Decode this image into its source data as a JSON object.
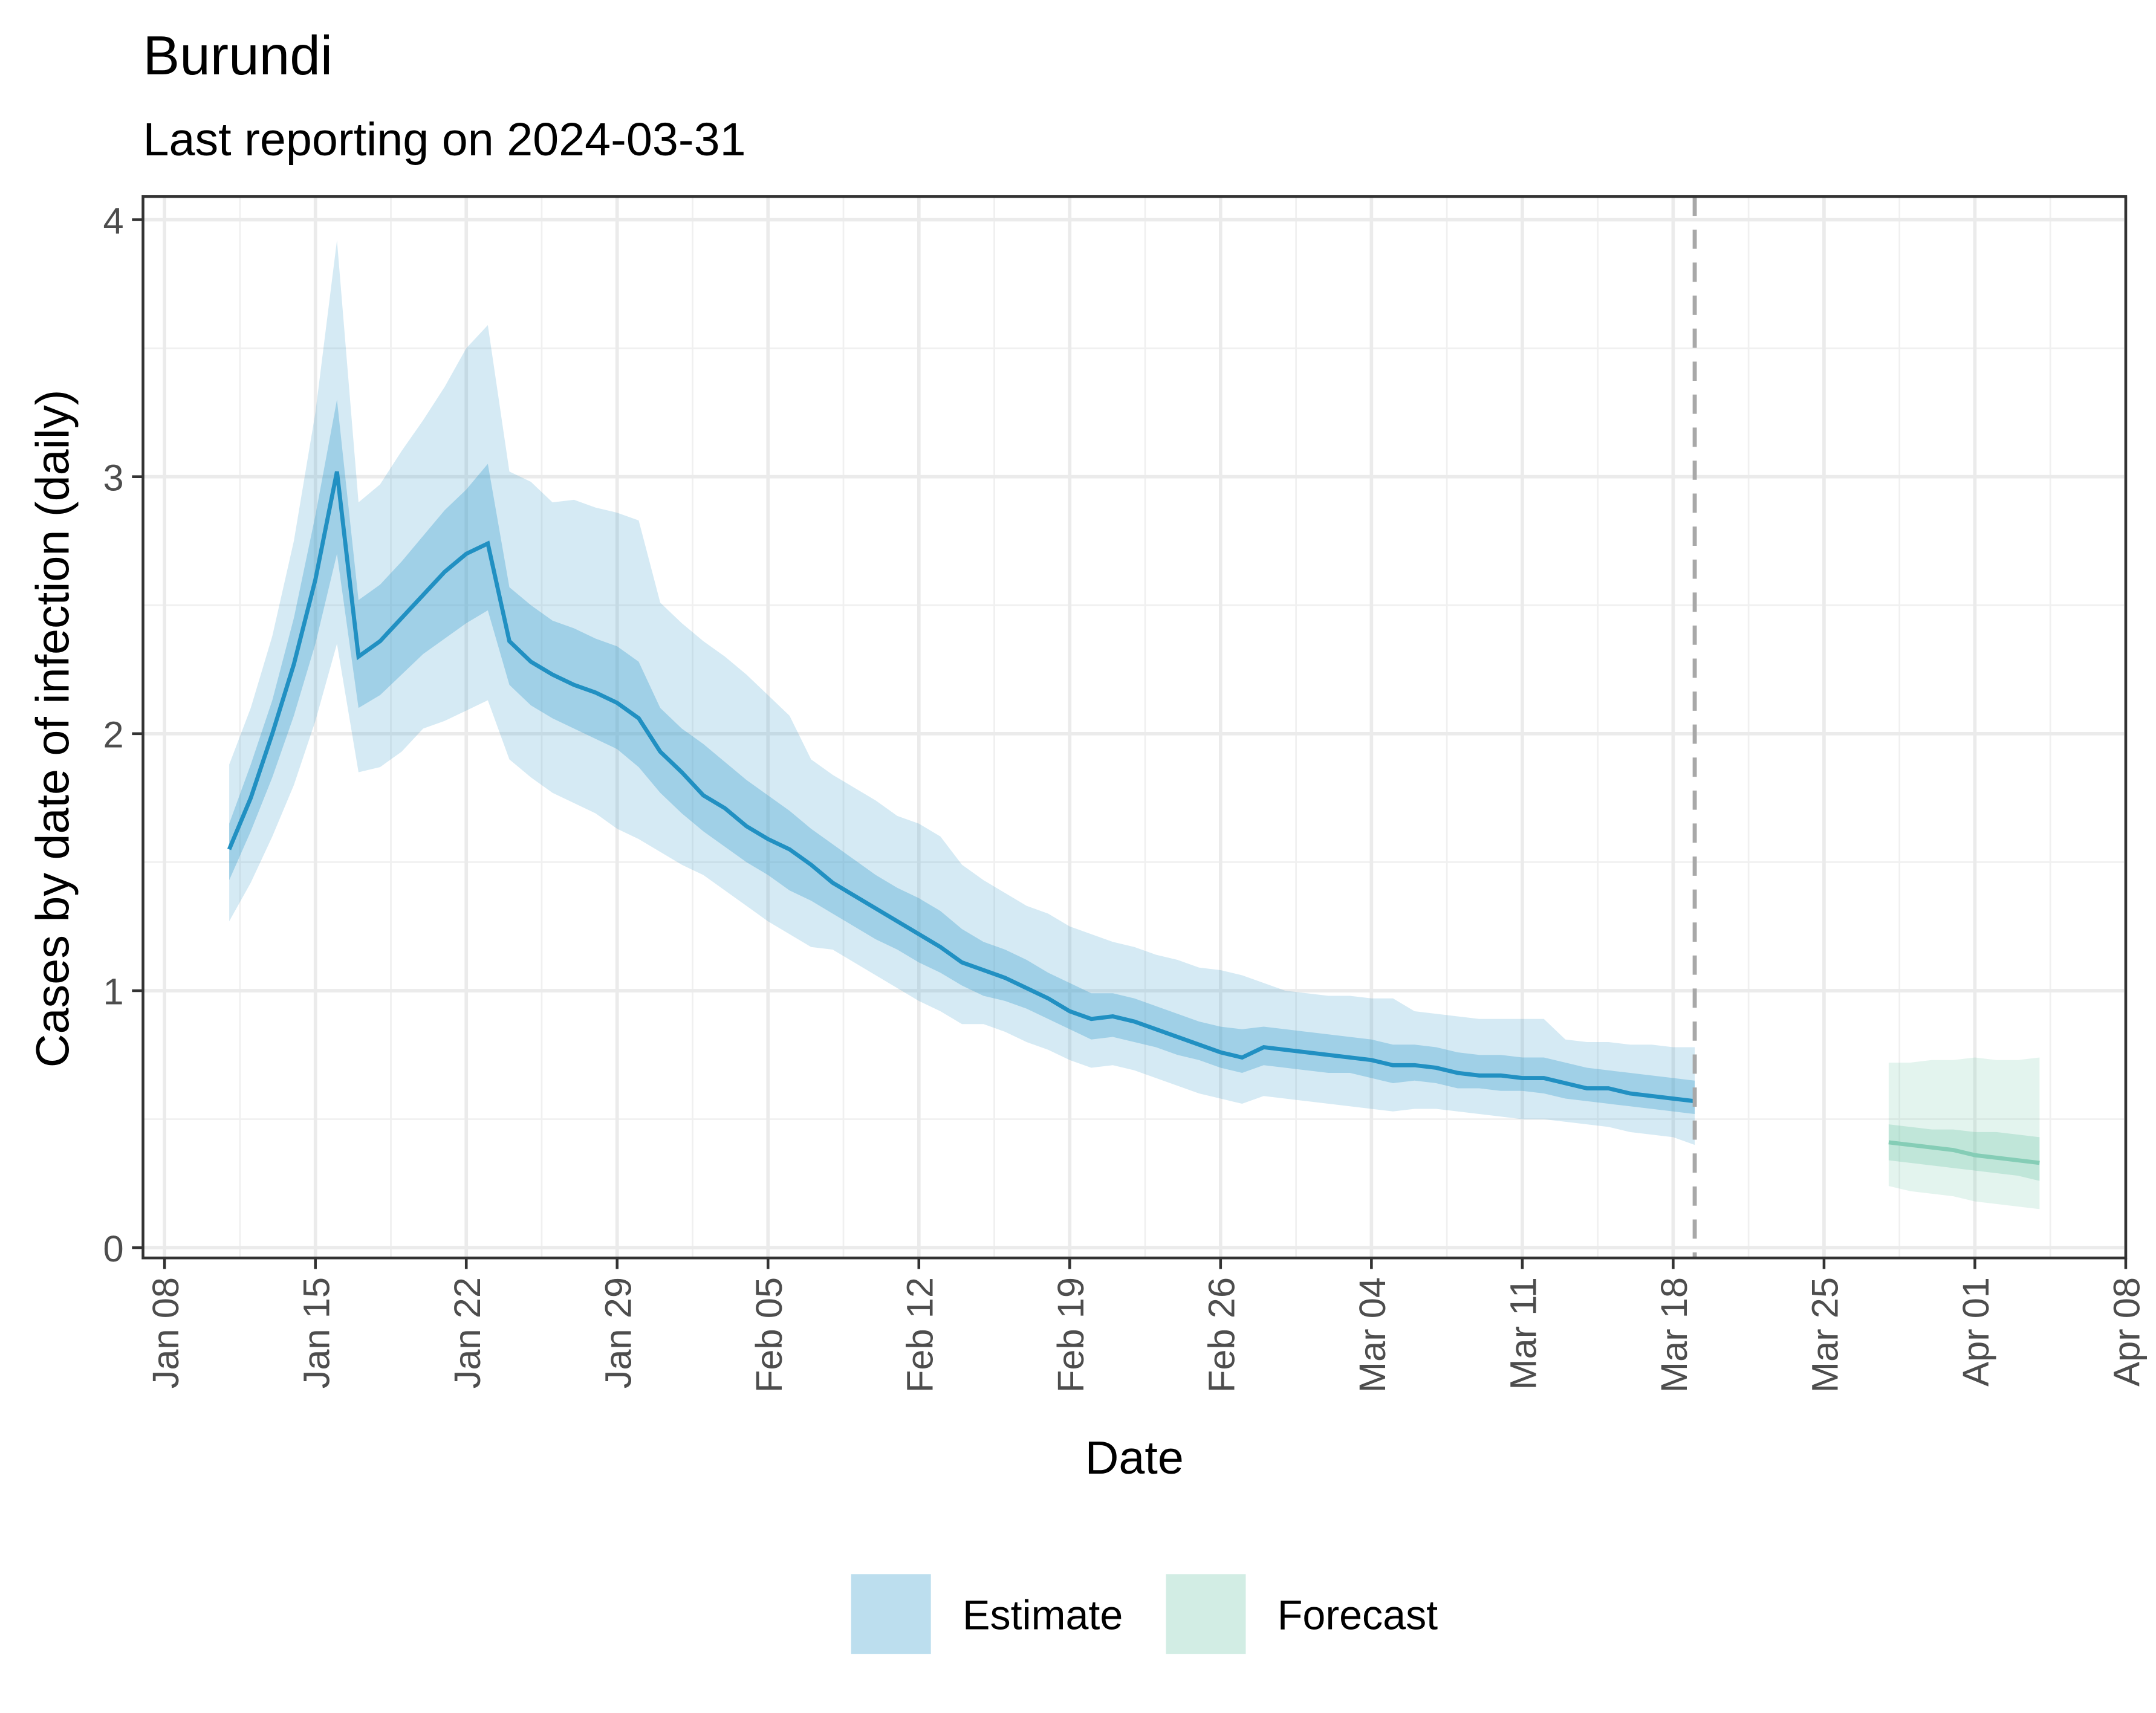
{
  "chart_data": {
    "type": "line",
    "title": "Burundi",
    "subtitle": "Last reporting on 2024-03-31",
    "x_label": "Date",
    "y_label": "Cases by date of infection (daily)",
    "xlim": [
      "Jan 07",
      "Apr 08"
    ],
    "ylim": [
      -0.04,
      4.09
    ],
    "xticks": [
      "Jan 08",
      "Jan 15",
      "Jan 22",
      "Jan 29",
      "Feb 05",
      "Feb 12",
      "Feb 19",
      "Feb 26",
      "Mar 04",
      "Mar 11",
      "Mar 18",
      "Mar 25",
      "Apr 01",
      "Apr 08"
    ],
    "yticks": [
      0,
      1,
      2,
      3,
      4
    ],
    "grid": true,
    "legend": "bottom",
    "vline_x": "Mar 19",
    "series": [
      {
        "name": "Estimate",
        "color": "#2190c2",
        "band_color": "#3fa0cf",
        "x": [
          "Jan 11",
          "Jan 12",
          "Jan 13",
          "Jan 14",
          "Jan 15",
          "Jan 16",
          "Jan 17",
          "Jan 18",
          "Jan 19",
          "Jan 20",
          "Jan 21",
          "Jan 22",
          "Jan 23",
          "Jan 24",
          "Jan 25",
          "Jan 26",
          "Jan 27",
          "Jan 28",
          "Jan 29",
          "Jan 30",
          "Jan 31",
          "Feb 01",
          "Feb 02",
          "Feb 03",
          "Feb 04",
          "Feb 05",
          "Feb 06",
          "Feb 07",
          "Feb 08",
          "Feb 09",
          "Feb 10",
          "Feb 11",
          "Feb 12",
          "Feb 13",
          "Feb 14",
          "Feb 15",
          "Feb 16",
          "Feb 17",
          "Feb 18",
          "Feb 19",
          "Feb 20",
          "Feb 21",
          "Feb 22",
          "Feb 23",
          "Feb 24",
          "Feb 25",
          "Feb 26",
          "Feb 27",
          "Feb 28",
          "Feb 29",
          "Mar 01",
          "Mar 02",
          "Mar 03",
          "Mar 04",
          "Mar 05",
          "Mar 06",
          "Mar 07",
          "Mar 08",
          "Mar 09",
          "Mar 10",
          "Mar 11",
          "Mar 12",
          "Mar 13",
          "Mar 14",
          "Mar 15",
          "Mar 16",
          "Mar 17",
          "Mar 18",
          "Mar 19"
        ],
        "values": [
          1.55,
          1.75,
          2.0,
          2.27,
          2.6,
          3.02,
          2.3,
          2.36,
          2.45,
          2.54,
          2.63,
          2.7,
          2.74,
          2.36,
          2.28,
          2.23,
          2.19,
          2.16,
          2.12,
          2.06,
          1.93,
          1.85,
          1.76,
          1.71,
          1.64,
          1.59,
          1.55,
          1.49,
          1.42,
          1.37,
          1.32,
          1.27,
          1.22,
          1.17,
          1.11,
          1.08,
          1.05,
          1.01,
          0.97,
          0.92,
          0.89,
          0.9,
          0.88,
          0.85,
          0.82,
          0.79,
          0.76,
          0.74,
          0.78,
          0.77,
          0.76,
          0.75,
          0.74,
          0.73,
          0.71,
          0.71,
          0.7,
          0.68,
          0.67,
          0.67,
          0.66,
          0.66,
          0.64,
          0.62,
          0.62,
          0.6,
          0.59,
          0.58,
          0.57
        ],
        "lower_50": [
          1.43,
          1.62,
          1.83,
          2.07,
          2.35,
          2.7,
          2.1,
          2.15,
          2.23,
          2.31,
          2.37,
          2.43,
          2.48,
          2.19,
          2.11,
          2.06,
          2.02,
          1.98,
          1.94,
          1.87,
          1.77,
          1.69,
          1.62,
          1.56,
          1.5,
          1.45,
          1.39,
          1.35,
          1.3,
          1.25,
          1.2,
          1.16,
          1.11,
          1.07,
          1.02,
          0.98,
          0.96,
          0.93,
          0.89,
          0.85,
          0.81,
          0.82,
          0.8,
          0.78,
          0.75,
          0.73,
          0.7,
          0.68,
          0.71,
          0.7,
          0.69,
          0.68,
          0.68,
          0.66,
          0.64,
          0.65,
          0.64,
          0.62,
          0.62,
          0.61,
          0.61,
          0.6,
          0.58,
          0.57,
          0.56,
          0.55,
          0.54,
          0.53,
          0.52
        ],
        "upper_50": [
          1.65,
          1.88,
          2.13,
          2.45,
          2.85,
          3.3,
          2.52,
          2.58,
          2.67,
          2.77,
          2.87,
          2.95,
          3.05,
          2.57,
          2.5,
          2.44,
          2.41,
          2.37,
          2.34,
          2.28,
          2.1,
          2.02,
          1.96,
          1.89,
          1.82,
          1.76,
          1.7,
          1.63,
          1.57,
          1.51,
          1.45,
          1.4,
          1.36,
          1.31,
          1.24,
          1.19,
          1.16,
          1.12,
          1.07,
          1.03,
          0.99,
          0.99,
          0.97,
          0.94,
          0.91,
          0.88,
          0.86,
          0.85,
          0.86,
          0.85,
          0.84,
          0.83,
          0.82,
          0.81,
          0.79,
          0.79,
          0.78,
          0.76,
          0.75,
          0.75,
          0.74,
          0.74,
          0.72,
          0.7,
          0.69,
          0.68,
          0.67,
          0.66,
          0.65
        ],
        "lower_90": [
          1.27,
          1.42,
          1.6,
          1.8,
          2.05,
          2.35,
          1.85,
          1.87,
          1.93,
          2.02,
          2.05,
          2.09,
          2.13,
          1.9,
          1.83,
          1.77,
          1.73,
          1.69,
          1.63,
          1.59,
          1.54,
          1.49,
          1.45,
          1.39,
          1.33,
          1.27,
          1.22,
          1.17,
          1.16,
          1.11,
          1.06,
          1.01,
          0.96,
          0.92,
          0.87,
          0.87,
          0.84,
          0.8,
          0.77,
          0.73,
          0.7,
          0.71,
          0.69,
          0.66,
          0.63,
          0.6,
          0.58,
          0.56,
          0.59,
          0.58,
          0.57,
          0.56,
          0.55,
          0.54,
          0.53,
          0.54,
          0.54,
          0.53,
          0.52,
          0.51,
          0.5,
          0.5,
          0.49,
          0.48,
          0.47,
          0.45,
          0.44,
          0.43,
          0.4
        ],
        "upper_90": [
          1.88,
          2.1,
          2.38,
          2.75,
          3.25,
          3.92,
          2.9,
          2.97,
          3.1,
          3.22,
          3.35,
          3.5,
          3.59,
          3.02,
          2.98,
          2.9,
          2.91,
          2.88,
          2.86,
          2.83,
          2.51,
          2.43,
          2.36,
          2.3,
          2.23,
          2.15,
          2.07,
          1.9,
          1.84,
          1.79,
          1.74,
          1.68,
          1.65,
          1.6,
          1.49,
          1.43,
          1.38,
          1.33,
          1.3,
          1.25,
          1.22,
          1.19,
          1.17,
          1.14,
          1.12,
          1.09,
          1.08,
          1.06,
          1.03,
          1.0,
          0.99,
          0.98,
          0.98,
          0.97,
          0.97,
          0.92,
          0.91,
          0.9,
          0.89,
          0.89,
          0.89,
          0.89,
          0.81,
          0.8,
          0.8,
          0.79,
          0.79,
          0.78,
          0.78
        ]
      },
      {
        "name": "Forecast",
        "color": "#85cdb6",
        "band_color": "#7fcbb2",
        "x": [
          "Mar 28",
          "Mar 29",
          "Mar 30",
          "Mar 31",
          "Apr 01",
          "Apr 02",
          "Apr 03",
          "Apr 04"
        ],
        "values": [
          0.41,
          0.4,
          0.39,
          0.38,
          0.36,
          0.35,
          0.34,
          0.33
        ],
        "lower_50": [
          0.34,
          0.33,
          0.32,
          0.31,
          0.3,
          0.29,
          0.28,
          0.26
        ],
        "upper_50": [
          0.48,
          0.47,
          0.46,
          0.46,
          0.45,
          0.45,
          0.44,
          0.43
        ],
        "lower_90": [
          0.24,
          0.22,
          0.21,
          0.2,
          0.18,
          0.17,
          0.16,
          0.15
        ],
        "upper_90": [
          0.72,
          0.72,
          0.73,
          0.73,
          0.74,
          0.73,
          0.73,
          0.74
        ]
      }
    ]
  }
}
